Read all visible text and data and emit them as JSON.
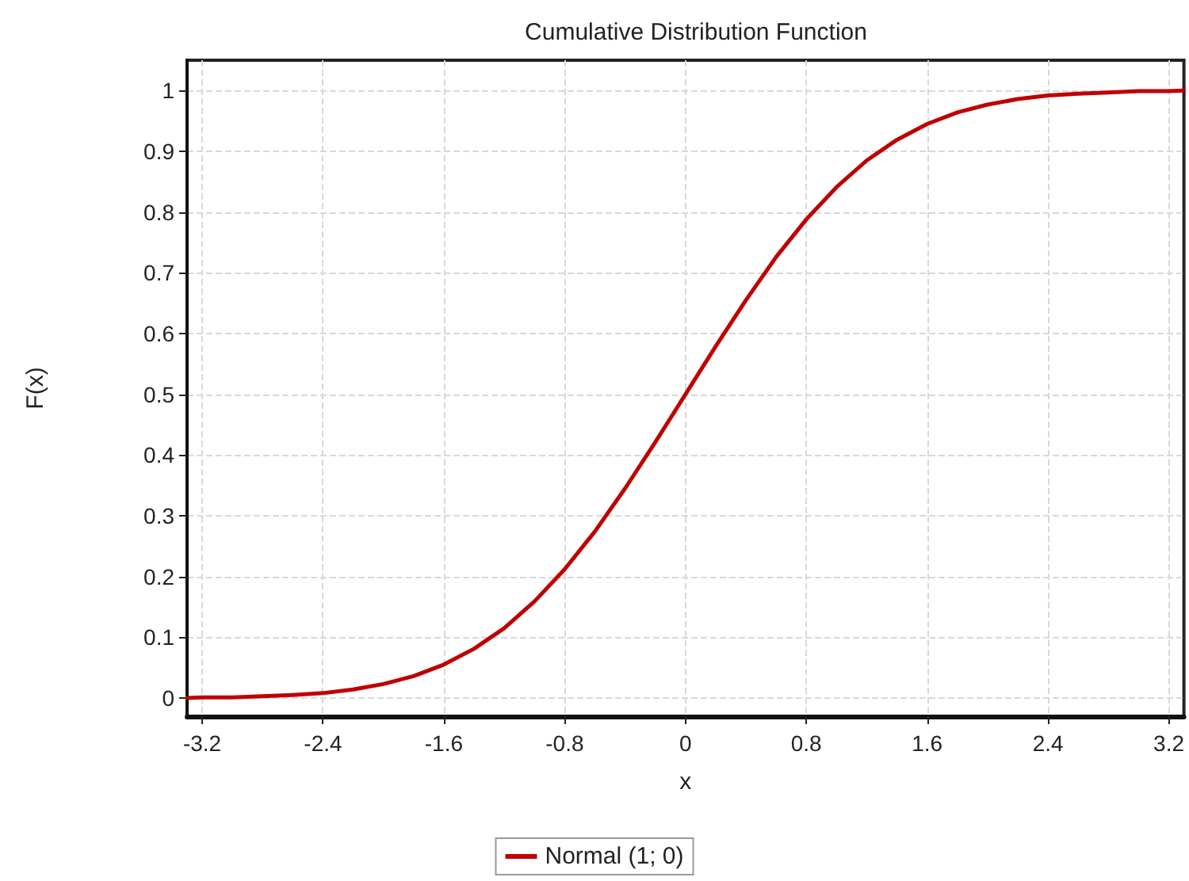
{
  "chart_data": {
    "type": "line",
    "title": "Cumulative Distribution Function",
    "xlabel": "x",
    "ylabel": "F(x)",
    "x": [
      -3.3,
      -3.2,
      -3.0,
      -2.8,
      -2.6,
      -2.4,
      -2.2,
      -2.0,
      -1.8,
      -1.6,
      -1.4,
      -1.2,
      -1.0,
      -0.8,
      -0.6,
      -0.4,
      -0.2,
      0,
      0.2,
      0.4,
      0.6,
      0.8,
      1.0,
      1.2,
      1.4,
      1.6,
      1.8,
      2.0,
      2.2,
      2.4,
      2.6,
      2.8,
      3.0,
      3.2,
      3.3
    ],
    "series": [
      {
        "name": "Normal (1; 0)",
        "color": "#c00000",
        "values": [
          0.0,
          0.001,
          0.001,
          0.003,
          0.005,
          0.008,
          0.014,
          0.023,
          0.036,
          0.055,
          0.081,
          0.115,
          0.159,
          0.212,
          0.274,
          0.345,
          0.421,
          0.5,
          0.579,
          0.655,
          0.726,
          0.788,
          0.841,
          0.885,
          0.919,
          0.945,
          0.964,
          0.977,
          0.986,
          0.992,
          0.995,
          0.997,
          0.999,
          0.999,
          1.0
        ]
      }
    ],
    "xlim": [
      -3.3,
      3.3
    ],
    "xticks": [
      -3.2,
      -2.4,
      -1.6,
      -0.8,
      0,
      0.8,
      1.6,
      2.4,
      3.2
    ],
    "ylim": [
      -0.03,
      1.05
    ],
    "yticks": [
      0,
      0.1,
      0.2,
      0.3,
      0.4,
      0.5,
      0.6,
      0.7,
      0.8,
      0.9,
      1
    ],
    "grid": true,
    "legend": "bottom",
    "marker": "none",
    "line_style": "solid"
  }
}
